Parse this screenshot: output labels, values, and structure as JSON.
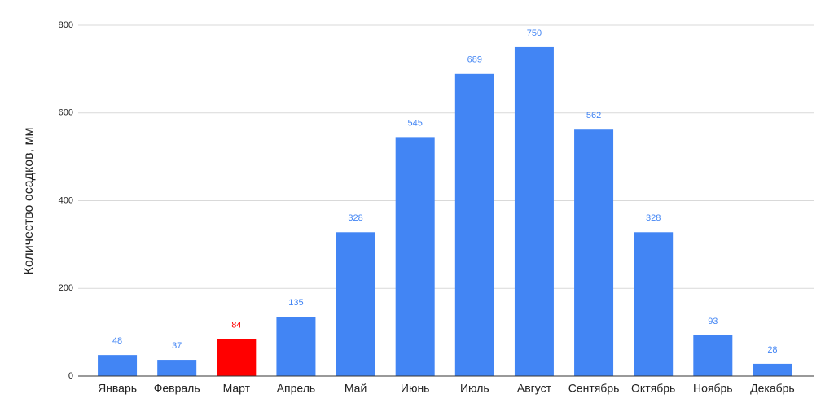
{
  "chart_data": {
    "type": "bar",
    "y_label": "Количество осадков, мм",
    "categories": [
      "Январь",
      "Февраль",
      "Март",
      "Апрель",
      "Май",
      "Июнь",
      "Июль",
      "Август",
      "Сентябрь",
      "Октябрь",
      "Ноябрь",
      "Декабрь"
    ],
    "values": [
      48,
      37,
      84,
      135,
      328,
      545,
      689,
      750,
      562,
      328,
      93,
      28
    ],
    "colors": [
      "#4285f4",
      "#4285f4",
      "#ff0000",
      "#4285f4",
      "#4285f4",
      "#4285f4",
      "#4285f4",
      "#4285f4",
      "#4285f4",
      "#4285f4",
      "#4285f4",
      "#4285f4"
    ],
    "ylim": [
      0,
      800
    ],
    "yticks": [
      0,
      200,
      400,
      600,
      800
    ],
    "grid": true,
    "data_labels": true
  }
}
